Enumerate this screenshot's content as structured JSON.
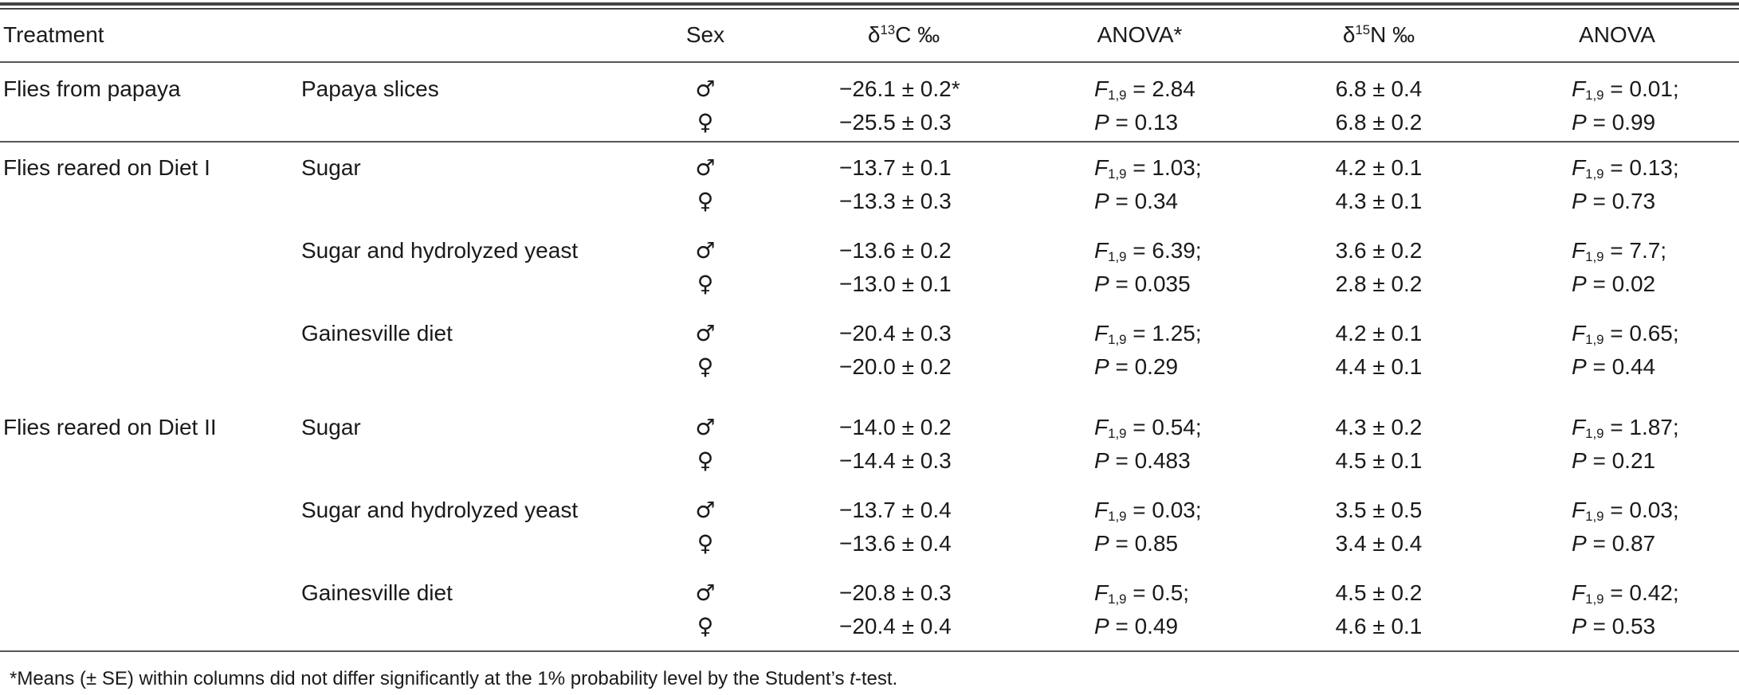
{
  "header": {
    "treatment": "Treatment",
    "sex": "Sex",
    "c13": "δ13C ‰",
    "anova1": "ANOVA*",
    "n15": "δ15N ‰",
    "anova2": "ANOVA"
  },
  "rows": [
    {
      "group": "Flies from papaya",
      "diet": "Papaya slices",
      "male": {
        "sex": "♂",
        "c13": "−26.1 ± 0.2*",
        "c13_stat": "F",
        "c13_sub": "1,9",
        "c13_val": "= 2.84",
        "n15": "6.8 ± 0.4",
        "n15_stat": "F",
        "n15_sub": "1,9",
        "n15_val": "= 0.01;"
      },
      "female": {
        "sex": "♀",
        "c13": "−25.5 ± 0.3",
        "c13_stat": "P",
        "c13_val": "= 0.13",
        "n15": "6.8 ± 0.2",
        "n15_stat": "P",
        "n15_val": "= 0.99"
      }
    },
    {
      "group": "Flies reared on Diet I",
      "diet": "Sugar",
      "male": {
        "sex": "♂",
        "c13": "−13.7 ± 0.1",
        "c13_stat": "F",
        "c13_sub": "1,9",
        "c13_val": "= 1.03;",
        "n15": "4.2 ± 0.1",
        "n15_stat": "F",
        "n15_sub": "1,9",
        "n15_val": "= 0.13;"
      },
      "female": {
        "sex": "♀",
        "c13": "−13.3 ± 0.3",
        "c13_stat": "P",
        "c13_val": "= 0.34",
        "n15": "4.3 ± 0.1",
        "n15_stat": "P",
        "n15_val": "= 0.73"
      }
    },
    {
      "group": "",
      "diet": "Sugar and hydrolyzed yeast",
      "male": {
        "sex": "♂",
        "c13": "−13.6 ± 0.2",
        "c13_stat": "F",
        "c13_sub": "1,9",
        "c13_val": "= 6.39;",
        "n15": "3.6 ± 0.2",
        "n15_stat": "F",
        "n15_sub": "1,9",
        "n15_val": "= 7.7;"
      },
      "female": {
        "sex": "♀",
        "c13": "−13.0 ± 0.1",
        "c13_stat": "P",
        "c13_val": "= 0.035",
        "n15": "2.8 ± 0.2",
        "n15_stat": "P",
        "n15_val": "= 0.02"
      }
    },
    {
      "group": "",
      "diet": "Gainesville diet",
      "male": {
        "sex": "♂",
        "c13": "−20.4 ± 0.3",
        "c13_stat": "F",
        "c13_sub": "1,9",
        "c13_val": "= 1.25;",
        "n15": "4.2 ± 0.1",
        "n15_stat": "F",
        "n15_sub": "1,9",
        "n15_val": "= 0.65;"
      },
      "female": {
        "sex": "♀",
        "c13": "−20.0 ± 0.2",
        "c13_stat": "P",
        "c13_val": "= 0.29",
        "n15": "4.4 ± 0.1",
        "n15_stat": "P",
        "n15_val": "= 0.44"
      }
    },
    {
      "group": "Flies reared on Diet II",
      "diet": "Sugar",
      "male": {
        "sex": "♂",
        "c13": "−14.0 ± 0.2",
        "c13_stat": "F",
        "c13_sub": "1,9",
        "c13_val": "= 0.54;",
        "n15": "4.3 ± 0.2",
        "n15_stat": "F",
        "n15_sub": "1,9",
        "n15_val": "= 1.87;"
      },
      "female": {
        "sex": "♀",
        "c13": "−14.4 ± 0.3",
        "c13_stat": "P",
        "c13_val": "= 0.483",
        "n15": "4.5 ± 0.1",
        "n15_stat": "P",
        "n15_val": "= 0.21"
      }
    },
    {
      "group": "",
      "diet": "Sugar and hydrolyzed yeast",
      "male": {
        "sex": "♂",
        "c13": "−13.7 ± 0.4",
        "c13_stat": "F",
        "c13_sub": "1,9",
        "c13_val": "= 0.03;",
        "n15": "3.5 ± 0.5",
        "n15_stat": "F",
        "n15_sub": "1,9",
        "n15_val": "= 0.03;"
      },
      "female": {
        "sex": "♀",
        "c13": "−13.6 ± 0.4",
        "c13_stat": "P",
        "c13_val": "= 0.85",
        "n15": "3.4 ± 0.4",
        "n15_stat": "P",
        "n15_val": "= 0.87"
      }
    },
    {
      "group": "",
      "diet": "Gainesville diet",
      "male": {
        "sex": "♂",
        "c13": "−20.8 ± 0.3",
        "c13_stat": "F",
        "c13_sub": "1,9",
        "c13_val": "= 0.5;",
        "n15": "4.5 ± 0.2",
        "n15_stat": "F",
        "n15_sub": "1,9",
        "n15_val": "= 0.42;"
      },
      "female": {
        "sex": "♀",
        "c13": "−20.4 ± 0.4",
        "c13_stat": "P",
        "c13_val": "= 0.49",
        "n15": "4.6 ± 0.1",
        "n15_stat": "P",
        "n15_val": "= 0.53"
      }
    }
  ],
  "footnote": {
    "pre": "*Means (± SE) within columns did not differ significantly at the 1% probability level by the Student’s ",
    "italic": "t",
    "post": "-test."
  }
}
